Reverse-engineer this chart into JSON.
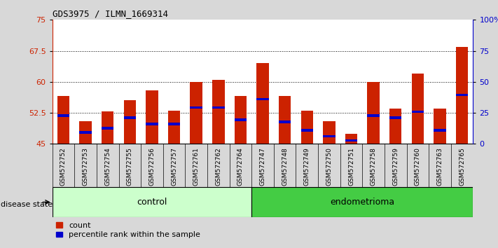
{
  "title": "GDS3975 / ILMN_1669314",
  "samples": [
    "GSM572752",
    "GSM572753",
    "GSM572754",
    "GSM572755",
    "GSM572756",
    "GSM572757",
    "GSM572761",
    "GSM572762",
    "GSM572764",
    "GSM572747",
    "GSM572748",
    "GSM572749",
    "GSM572750",
    "GSM572751",
    "GSM572758",
    "GSM572759",
    "GSM572760",
    "GSM572763",
    "GSM572765"
  ],
  "groups": [
    "control",
    "control",
    "control",
    "control",
    "control",
    "control",
    "control",
    "control",
    "control",
    "endometrioma",
    "endometrioma",
    "endometrioma",
    "endometrioma",
    "endometrioma",
    "endometrioma",
    "endometrioma",
    "endometrioma",
    "endometrioma",
    "endometrioma"
  ],
  "bar_heights": [
    56.5,
    50.5,
    52.8,
    55.5,
    58.0,
    53.0,
    60.0,
    60.5,
    56.5,
    64.5,
    56.5,
    53.0,
    50.5,
    47.5,
    60.0,
    53.5,
    62.0,
    53.5,
    68.5
  ],
  "blue_marks": [
    51.5,
    47.5,
    48.5,
    51.0,
    49.5,
    49.5,
    53.5,
    53.5,
    50.5,
    55.5,
    50.0,
    48.0,
    46.5,
    45.5,
    51.5,
    51.0,
    52.5,
    48.0,
    56.5
  ],
  "ylim_left": [
    45,
    75
  ],
  "ylim_right": [
    0,
    100
  ],
  "yticks_left": [
    45,
    52.5,
    60,
    67.5,
    75
  ],
  "yticks_right": [
    0,
    25,
    50,
    75,
    100
  ],
  "hline_values": [
    52.5,
    60.0,
    67.5
  ],
  "bar_color": "#cc2200",
  "blue_color": "#0000cc",
  "control_color": "#ccffcc",
  "endometrioma_color": "#44cc44",
  "fig_bg_color": "#d8d8d8",
  "plot_bg": "#ffffff",
  "bar_width": 0.55,
  "n_control": 9,
  "disease_state_label": "disease state",
  "control_label": "control",
  "endometrioma_label": "endometrioma",
  "legend_count": "count",
  "legend_pct": "percentile rank within the sample"
}
